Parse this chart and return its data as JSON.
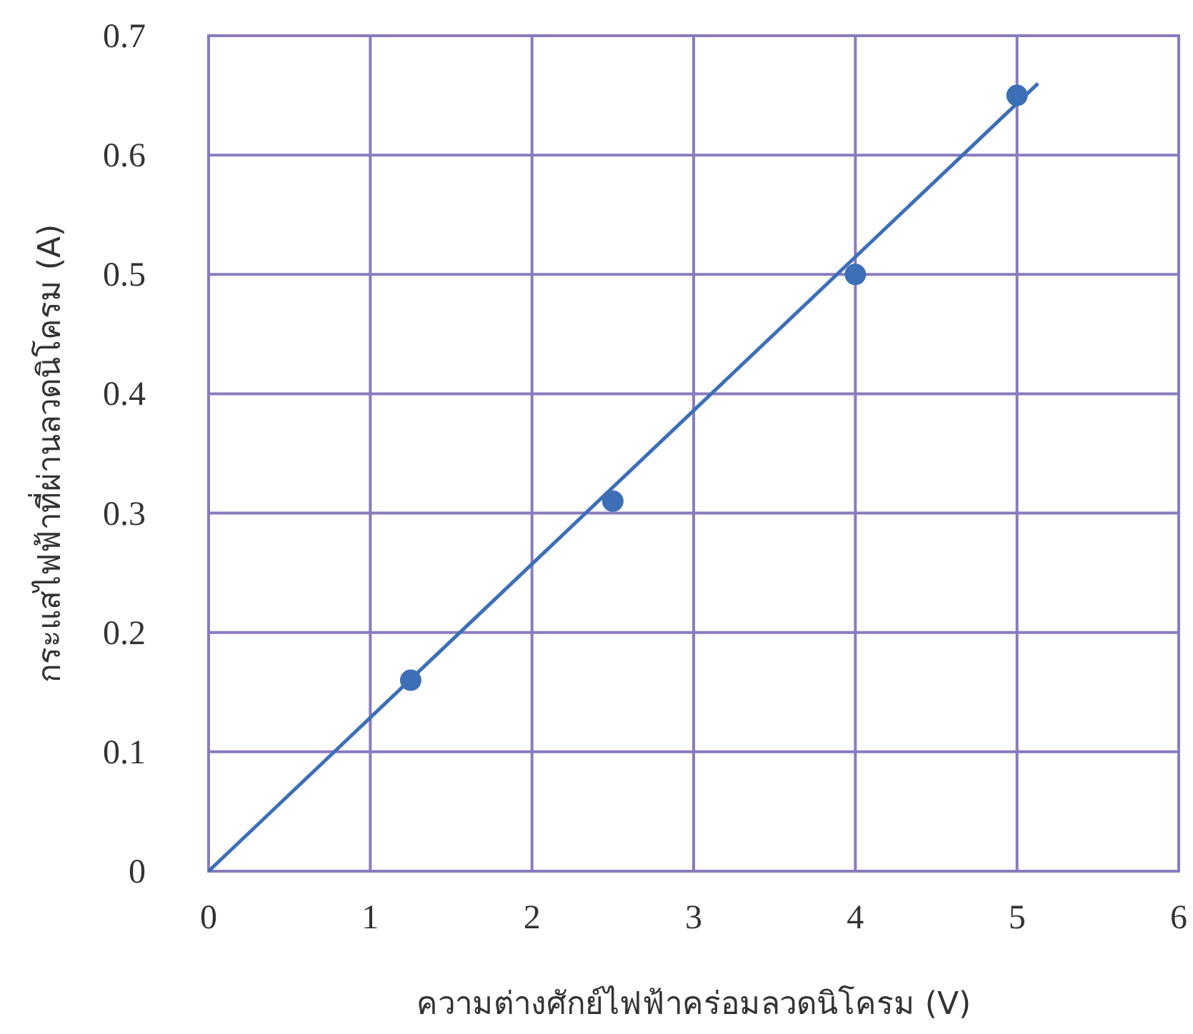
{
  "chart_data": {
    "type": "scatter",
    "xlabel": "ความต่างศักย์ไฟฟ้าคร่อมลวดนิโครม (V)",
    "ylabel": "กระแสไฟฟ้าที่ผ่านลวดนิโครม (A)",
    "series": [
      {
        "color": "#3d6fb6",
        "x": [
          1.25,
          2.5,
          4.0,
          5.0
        ],
        "values": [
          0.16,
          0.31,
          0.5,
          0.65
        ],
        "marker": "circle"
      },
      {
        "type": "line",
        "color": "#3d6fb6",
        "x": [
          0,
          5.13
        ],
        "values": [
          0,
          0.66
        ],
        "line_style": "solid"
      }
    ],
    "xlim": [
      0,
      6
    ],
    "xticks": [
      0,
      1,
      2,
      3,
      4,
      5,
      6
    ],
    "ylim": [
      0,
      0.7
    ],
    "yticks": [
      0,
      0.1,
      0.2,
      0.3,
      0.4,
      0.5,
      0.6,
      0.7
    ],
    "grid": true
  }
}
